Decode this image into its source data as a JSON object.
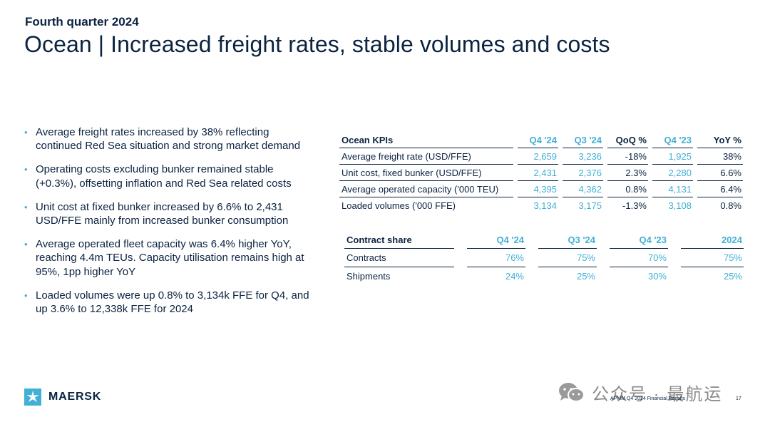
{
  "header": {
    "eyebrow": "Fourth quarter 2024",
    "title": "Ocean | Increased freight rates, stable volumes and costs"
  },
  "bullets": [
    "Average freight rates increased by 38% reflecting continued Red Sea situation and strong market demand",
    "Operating costs excluding bunker remained stable (+0.3%), offsetting inflation and Red Sea related costs",
    "Unit cost at fixed bunker increased by 6.6% to 2,431 USD/FFE mainly from increased bunker consumption",
    "Average operated fleet capacity was 6.4% higher YoY, reaching 4.4m TEUs. Capacity utilisation remains high at 95%, 1pp higher YoY",
    "Loaded volumes were up 0.8% to 3,134k FFE for Q4, and up 3.6% to 12,338k FFE for 2024"
  ],
  "kpi_table": {
    "headers": [
      "Ocean KPIs",
      "Q4 '24",
      "Q3 '24",
      "QoQ %",
      "Q4 '23",
      "YoY %"
    ],
    "rows": [
      [
        "Average freight rate (USD/FFE)",
        "2,659",
        "3,236",
        "-18%",
        "1,925",
        "38%"
      ],
      [
        "Unit cost, fixed bunker (USD/FFE)",
        "2,431",
        "2,376",
        "2.3%",
        "2,280",
        "6.6%"
      ],
      [
        "Average operated capacity ('000 TEU)",
        "4,395",
        "4,362",
        "0.8%",
        "4,131",
        "6.4%"
      ],
      [
        "Loaded volumes ('000 FFE)",
        "3,134",
        "3,175",
        "-1.3%",
        "3,108",
        "0.8%"
      ]
    ]
  },
  "contract_table": {
    "headers": [
      "Contract share",
      "Q4 '24",
      "Q3 '24",
      "Q4 '23",
      "2024"
    ],
    "rows": [
      [
        "Contracts",
        "76%",
        "75%",
        "70%",
        "75%"
      ],
      [
        "Shipments",
        "24%",
        "25%",
        "30%",
        "25%"
      ]
    ]
  },
  "footer": {
    "brand": "MAERSK",
    "watermark": "公众号 · 最航运",
    "note": "APMM Q4 2024 Financial Results",
    "page": "17"
  },
  "colors": {
    "navy": "#0b2340",
    "accent": "#42b0d5"
  },
  "icons": {
    "logo": "maersk-star-icon",
    "watermark": "wechat-icon"
  }
}
